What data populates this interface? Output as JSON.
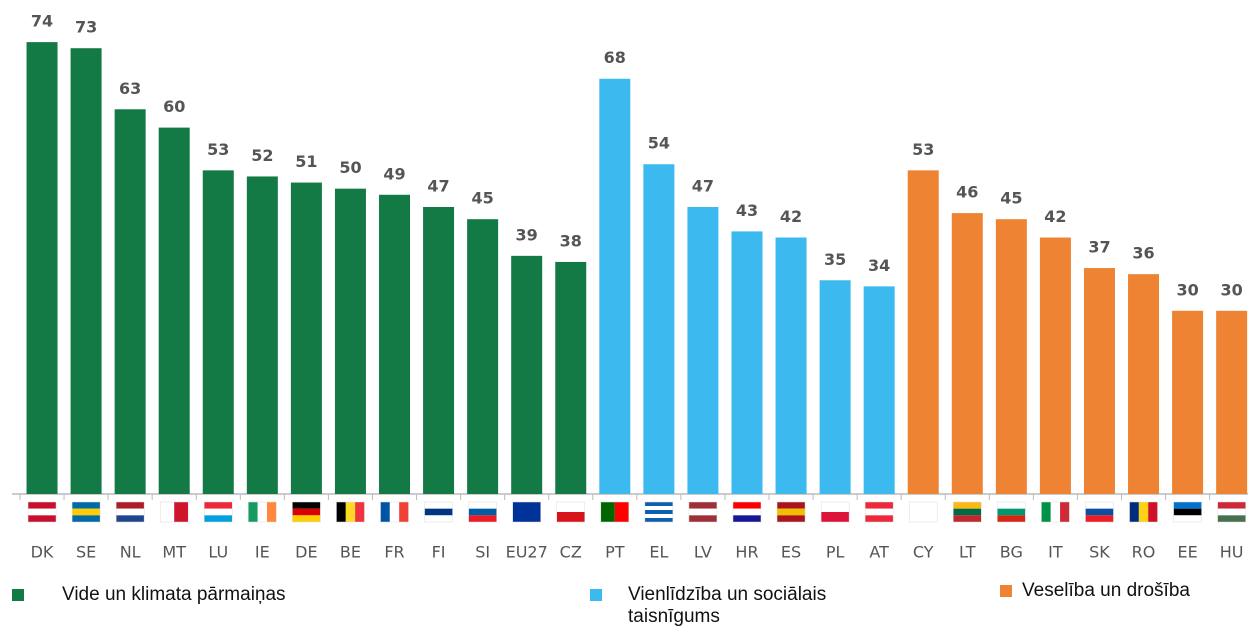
{
  "chart_data": {
    "type": "bar",
    "categories": [
      "DK",
      "SE",
      "NL",
      "MT",
      "LU",
      "IE",
      "DE",
      "BE",
      "FR",
      "FI",
      "SI",
      "EU27",
      "CZ",
      "PT",
      "EL",
      "LV",
      "HR",
      "ES",
      "PL",
      "AT",
      "CY",
      "LT",
      "BG",
      "IT",
      "SK",
      "RO",
      "EE",
      "HU"
    ],
    "series": [
      {
        "name": "Vide un klimata pārmaiņas",
        "color": "#147a45",
        "values": [
          74,
          73,
          63,
          60,
          53,
          52,
          51,
          50,
          49,
          47,
          45,
          39,
          38,
          null,
          null,
          null,
          null,
          null,
          null,
          null,
          null,
          null,
          null,
          null,
          null,
          null,
          null,
          null
        ]
      },
      {
        "name": "Vienlīdzība un sociālais taisnīgums",
        "color": "#3cb9ee",
        "values": [
          null,
          null,
          null,
          null,
          null,
          null,
          null,
          null,
          null,
          null,
          null,
          null,
          null,
          68,
          54,
          47,
          43,
          42,
          35,
          34,
          null,
          null,
          null,
          null,
          null,
          null,
          null,
          null
        ]
      },
      {
        "name": "Veselība un drošība",
        "color": "#ee8433",
        "values": [
          null,
          null,
          null,
          null,
          null,
          null,
          null,
          null,
          null,
          null,
          null,
          null,
          null,
          null,
          null,
          null,
          null,
          null,
          null,
          null,
          53,
          46,
          45,
          42,
          37,
          36,
          30,
          30
        ]
      }
    ],
    "ylim": [
      0,
      75
    ]
  }
}
